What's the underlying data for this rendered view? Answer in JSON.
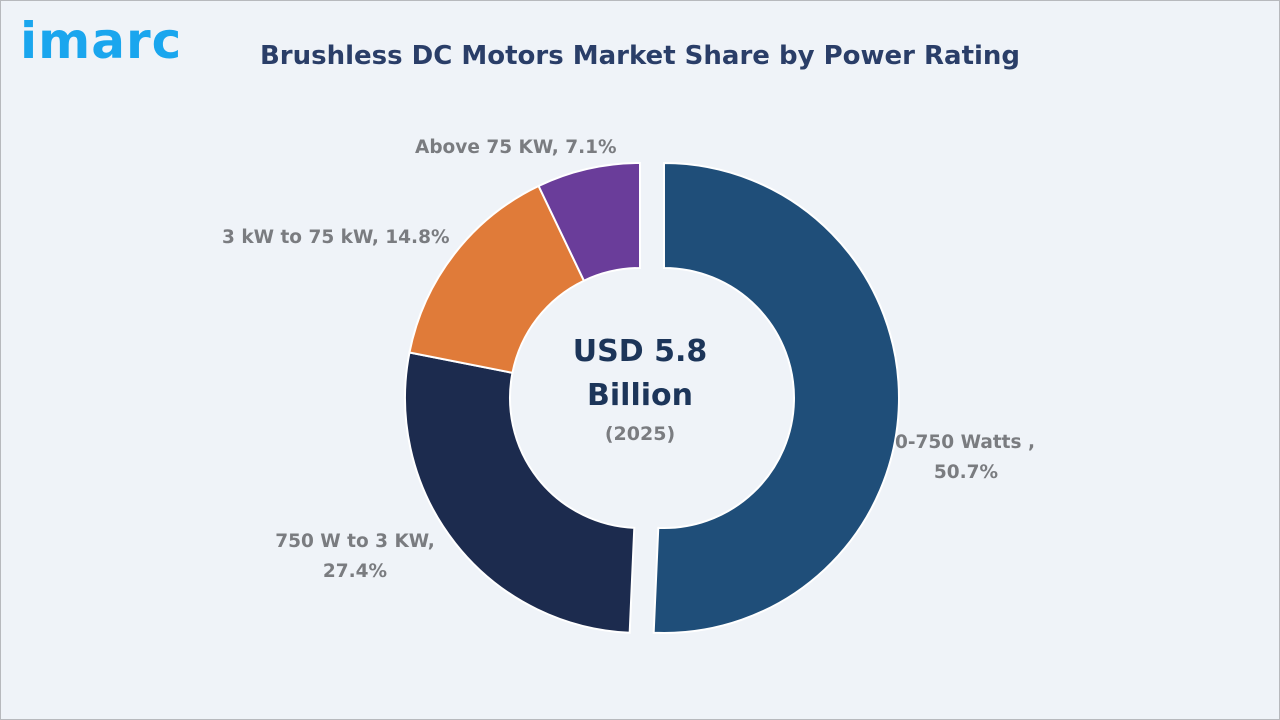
{
  "logo": {
    "text": "imarc",
    "color": "#1aa6ee"
  },
  "title": "Brushless DC Motors Market Share by Power Rating",
  "center": {
    "line1": "USD 5.8",
    "line2": "Billion",
    "line3": "(2025)"
  },
  "labels": {
    "s0_line1": "0-750 Watts ,",
    "s0_line2": "50.7%",
    "s1_line1": "750 W to 3 KW,",
    "s1_line2": "27.4%",
    "s2": "3 kW to 75 kW, 14.8%",
    "s3": "Above 75 KW, 7.1%"
  },
  "chart_data": {
    "type": "pie",
    "variant": "donut",
    "title": "Brushless DC Motors Market Share by Power Rating",
    "center_text": "USD 5.8 Billion (2025)",
    "categories": [
      "0-750 Watts",
      "750 W to 3 KW",
      "3 kW to 75 kW",
      "Above 75 KW"
    ],
    "values": [
      50.7,
      27.4,
      14.8,
      7.1
    ],
    "unit": "%",
    "colors": [
      "#1f4e79",
      "#1c2b4e",
      "#e07b39",
      "#6a3d9a"
    ],
    "exploded": [
      "0-750 Watts"
    ],
    "legend": "none (data labels)"
  }
}
